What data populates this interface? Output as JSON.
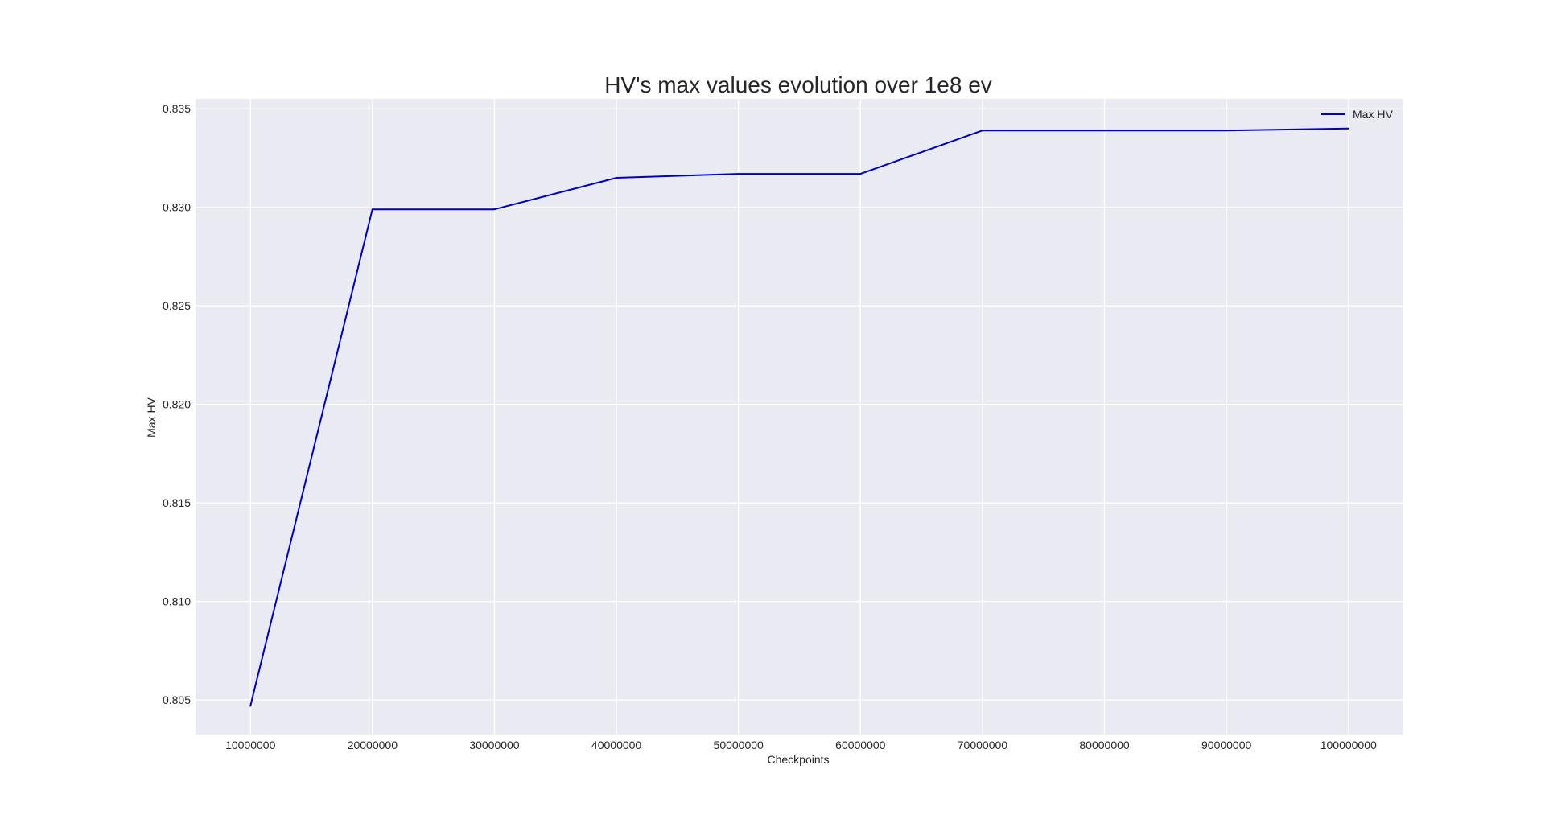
{
  "chart_data": {
    "type": "line",
    "title": "HV's max values evolution over 1e8 ev",
    "xlabel": "Checkpoints",
    "ylabel": "Max HV",
    "x": [
      10000000,
      20000000,
      30000000,
      40000000,
      50000000,
      60000000,
      70000000,
      80000000,
      90000000,
      100000000
    ],
    "x_tick_labels": [
      "10000000",
      "20000000",
      "30000000",
      "40000000",
      "50000000",
      "60000000",
      "70000000",
      "80000000",
      "90000000",
      "100000000"
    ],
    "series": [
      {
        "name": "Max HV",
        "color": "#0000cc",
        "values": [
          0.8047,
          0.8299,
          0.8299,
          0.8315,
          0.8317,
          0.8317,
          0.8339,
          0.8339,
          0.8339,
          0.834
        ]
      }
    ],
    "y_ticks": [
      0.805,
      0.81,
      0.815,
      0.82,
      0.825,
      0.83,
      0.835
    ],
    "y_tick_labels": [
      "0.805",
      "0.810",
      "0.815",
      "0.820",
      "0.825",
      "0.830",
      "0.835"
    ],
    "xlim": [
      5500000,
      104500000
    ],
    "ylim": [
      0.80325,
      0.8355
    ],
    "grid": true,
    "legend_position": "top-right",
    "plot_background": "#eaeaf2"
  }
}
